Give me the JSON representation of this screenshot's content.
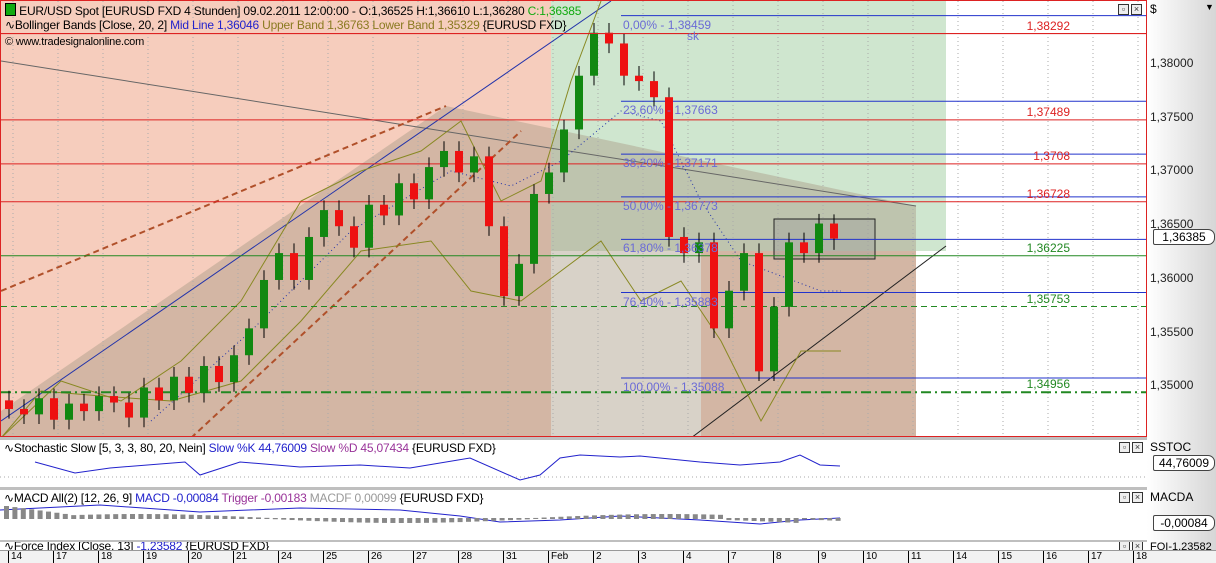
{
  "header": {
    "symbol_line": "EUR/USD Spot [EURUSD FXD  4 Stunden] 09.02.2011 12:00:00 - O:1,36525 H:1,36610 L:1,36280",
    "close_label": "C:1,36385",
    "bb_prefix": "Bollinger Bands [Close, 20, 2]",
    "bb_mid": "Mid Line 1,36046",
    "bb_bands": "Upper Band 1,36763 Lower Band 1,35329",
    "bb_suffix": "{EURUSD FXD}",
    "copyright": "© www.tradesignalonline.com",
    "annotation": "sk"
  },
  "price_axis": {
    "currency": "$",
    "ticks": [
      "1,38000",
      "1,37500",
      "1,37000",
      "1,36500",
      "1,36000",
      "1,35500",
      "1,35000"
    ],
    "current": "1,36385"
  },
  "levels": [
    {
      "label": "1,38292",
      "price": 1.38292,
      "color": "#dd2222",
      "style": "solid"
    },
    {
      "label": "1,37489",
      "price": 1.37489,
      "color": "#dd2222",
      "style": "solid"
    },
    {
      "label": "1,3708",
      "price": 1.3708,
      "color": "#dd2222",
      "style": "solid"
    },
    {
      "label": "1,36728",
      "price": 1.36728,
      "color": "#dd2222",
      "style": "solid"
    },
    {
      "label": "1,36225",
      "price": 1.36225,
      "color": "#228822",
      "style": "solid"
    },
    {
      "label": "1,35753",
      "price": 1.35753,
      "color": "#228822",
      "style": "dashed"
    },
    {
      "label": "1,34956",
      "price": 1.34956,
      "color": "#228822",
      "style": "dashdot"
    }
  ],
  "fibonacci": [
    {
      "label": "0,00% - 1,38459",
      "price": 1.38459
    },
    {
      "label": "23,60% - 1,37663",
      "price": 1.37663
    },
    {
      "label": "38,20% - 1,37171",
      "price": 1.37171
    },
    {
      "label": "50,00% - 1,36773",
      "price": 1.36773
    },
    {
      "label": "61,80% - 1,36378",
      "price": 1.36378
    },
    {
      "label": "76,40% - 1,35883",
      "price": 1.35883
    },
    {
      "label": "100,00% - 1,35088",
      "price": 1.35088
    }
  ],
  "chart_data": {
    "type": "candlestick",
    "closes": [
      1.348,
      1.3475,
      1.349,
      1.347,
      1.3485,
      1.3478,
      1.3492,
      1.3486,
      1.3472,
      1.35,
      1.3488,
      1.351,
      1.3495,
      1.352,
      1.3505,
      1.353,
      1.3555,
      1.36,
      1.3625,
      1.36,
      1.364,
      1.3665,
      1.365,
      1.363,
      1.367,
      1.366,
      1.369,
      1.3675,
      1.3705,
      1.372,
      1.37,
      1.3715,
      1.365,
      1.3585,
      1.3615,
      1.368,
      1.37,
      1.374,
      1.379,
      1.383,
      1.382,
      1.379,
      1.3785,
      1.377,
      1.364,
      1.3625,
      1.3635,
      1.3555,
      1.359,
      1.3625,
      1.3515,
      1.3575,
      1.3635,
      1.3625,
      1.36525,
      1.36385
    ],
    "last_bar": {
      "open": 1.36525,
      "high": 1.3661,
      "low": 1.3628,
      "close": 1.36385
    },
    "ylim": [
      1.3453,
      1.38595
    ],
    "colors": {
      "up": "#118811",
      "down": "#ee1111"
    }
  },
  "stochastic": {
    "prefix": "Stochastic Slow [5, 3, 3, 80, 20, Nein]",
    "k": "Slow %K 44,76009",
    "d": "Slow %D 45,07434",
    "suffix": "{EURUSD FXD}",
    "axis_label": "SSTOC",
    "current": "44,76009"
  },
  "macd": {
    "prefix": "MACD All(2) [12, 26, 9]",
    "macd": "MACD -0,00084",
    "trigger": "Trigger -0,00183",
    "macdf": "MACDF 0,00099",
    "suffix": "{EURUSD FXD}",
    "axis_label": "MACDA",
    "current": "-0,00084"
  },
  "force": {
    "prefix": "Force Index [Close, 13]",
    "value": "-1,23582",
    "suffix": "{EURUSD FXD}",
    "axis_label": "FOI",
    "current": "-1,23582"
  },
  "dates": [
    "14",
    "17",
    "18",
    "19",
    "20",
    "21",
    "24",
    "25",
    "26",
    "27",
    "28",
    "31",
    "Feb",
    "2",
    "3",
    "4",
    "7",
    "8",
    "9",
    "10",
    "11",
    "14",
    "15",
    "16",
    "17",
    "18"
  ]
}
